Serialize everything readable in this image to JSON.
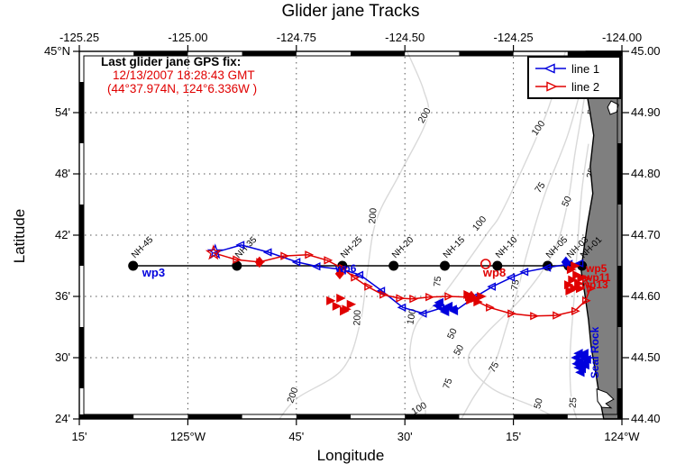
{
  "chart_data": {
    "type": "line",
    "title": "Glider jane Tracks",
    "xlabel": "Longitude",
    "ylabel": "Latitude",
    "xlim": [
      -125.25,
      -124.0
    ],
    "ylim": [
      44.4,
      45.0
    ],
    "x_tick_lons": [
      -125.25,
      -125.0,
      -124.75,
      -124.5,
      -124.25,
      -124.0
    ],
    "y_tick_lats": [
      45.0,
      44.9,
      44.8,
      44.7,
      44.6,
      44.5,
      44.4
    ],
    "axis_top_labels": [
      "-125.25",
      "-125.00",
      "-124.75",
      "-124.50",
      "-124.25",
      "-124.00"
    ],
    "axis_bottom_labels": [
      "15'",
      "125°W",
      "45'",
      "30'",
      "15'",
      "124°W"
    ],
    "axis_left_labels": [
      "45°N",
      "54'",
      "48'",
      "42'",
      "36'",
      "30'",
      "24'"
    ],
    "axis_right_labels": [
      "45.00",
      "44.90",
      "44.80",
      "44.70",
      "44.60",
      "44.50",
      "44.40"
    ],
    "grid": {
      "style": "dotted",
      "lons": [
        -125.0,
        -124.75,
        -124.5,
        -124.25
      ],
      "lats": [
        44.9,
        44.8,
        44.7,
        44.6,
        44.5
      ]
    },
    "colors": {
      "line1": "#0000dd",
      "line2": "#e00000",
      "land": "#7f7f7f",
      "contour": "#d9d9d9",
      "frame": "#000000"
    },
    "annotations": {
      "header": "Last glider jane GPS fix:",
      "datetime": "12/13/2007 18:28:43 GMT",
      "position": "(44°37.974N, 124°6.336W )"
    },
    "legend": {
      "position": "top-right",
      "items": [
        {
          "label": "line 1",
          "color": "#0000dd",
          "marker": "left-triangle"
        },
        {
          "label": "line 2",
          "color": "#e00000",
          "marker": "right-triangle"
        }
      ]
    },
    "nh_line": {
      "lat": 44.65,
      "lon_from": -125.126,
      "lon_to": -124.083
    },
    "nh_stations": [
      {
        "name": "NH-45",
        "lon": -125.126
      },
      {
        "name": "NH-35",
        "lon": -124.887
      },
      {
        "name": "NH-25",
        "lon": -124.644
      },
      {
        "name": "NH-20",
        "lon": -124.526
      },
      {
        "name": "NH-15",
        "lon": -124.408
      },
      {
        "name": "NH-10",
        "lon": -124.287
      },
      {
        "name": "NH-05",
        "lon": -124.171
      },
      {
        "name": "NH-03",
        "lon": -124.123
      },
      {
        "name": "NH-01",
        "lon": -124.092
      }
    ],
    "series": [
      {
        "name": "line 1",
        "color": "#0000dd",
        "marker": "left-triangle",
        "points": [
          [
            -124.941,
            44.671
          ],
          [
            -124.877,
            44.684
          ],
          [
            -124.814,
            44.672
          ],
          [
            -124.748,
            44.656
          ],
          [
            -124.702,
            44.649
          ],
          [
            -124.644,
            44.644
          ],
          [
            -124.603,
            44.635
          ],
          [
            -124.553,
            44.609
          ],
          [
            -124.505,
            44.582
          ],
          [
            -124.457,
            44.572
          ],
          [
            -124.416,
            44.581
          ],
          [
            -124.385,
            44.576
          ],
          [
            -124.339,
            44.599
          ],
          [
            -124.298,
            44.616
          ],
          [
            -124.254,
            44.631
          ],
          [
            -124.223,
            44.64
          ],
          [
            -124.171,
            44.647
          ],
          [
            -124.121,
            44.653
          ],
          [
            -124.096,
            44.654
          ]
        ]
      },
      {
        "name": "line 2",
        "color": "#e00000",
        "marker": "right-triangle",
        "points": [
          [
            -124.941,
            44.671
          ],
          [
            -124.889,
            44.66
          ],
          [
            -124.835,
            44.656
          ],
          [
            -124.779,
            44.666
          ],
          [
            -124.723,
            44.668
          ],
          [
            -124.679,
            44.659
          ],
          [
            -124.644,
            44.646
          ],
          [
            -124.617,
            44.631
          ],
          [
            -124.586,
            44.616
          ],
          [
            -124.551,
            44.603
          ],
          [
            -124.513,
            44.597
          ],
          [
            -124.482,
            44.596
          ],
          [
            -124.445,
            44.599
          ],
          [
            -124.401,
            44.6
          ],
          [
            -124.354,
            44.599
          ],
          [
            -124.306,
            44.582
          ],
          [
            -124.256,
            44.572
          ],
          [
            -124.204,
            44.568
          ],
          [
            -124.152,
            44.569
          ],
          [
            -124.109,
            44.576
          ],
          [
            -124.084,
            44.593
          ],
          [
            -124.073,
            44.613
          ],
          [
            -124.084,
            44.629
          ]
        ]
      }
    ],
    "start_marker": {
      "shape": "star",
      "lon": -124.941,
      "lat": 44.671
    },
    "wp8_circle": {
      "lon": -124.314,
      "lat": 44.653
    },
    "diamond_markers": [
      {
        "color": "#e00000",
        "lon": -124.835,
        "lat": 44.656
      },
      {
        "color": "#e00000",
        "lon": -124.65,
        "lat": 44.637
      },
      {
        "color": "#e00000",
        "lon": -124.347,
        "lat": 44.6
      },
      {
        "color": "#0000dd",
        "lon": -124.129,
        "lat": 44.656
      }
    ],
    "marker_clusters": [
      {
        "color": "#e00000",
        "dir": "right",
        "points": [
          [
            -124.673,
            44.593
          ],
          [
            -124.659,
            44.584
          ],
          [
            -124.642,
            44.576
          ],
          [
            -124.626,
            44.587
          ],
          [
            -124.65,
            44.597
          ],
          [
            -124.637,
            44.579
          ]
        ]
      },
      {
        "color": "#e00000",
        "dir": "right",
        "points": [
          [
            -124.357,
            44.603
          ],
          [
            -124.34,
            44.597
          ],
          [
            -124.326,
            44.6
          ],
          [
            -124.351,
            44.594
          ],
          [
            -124.334,
            44.591
          ]
        ]
      },
      {
        "color": "#e00000",
        "dir": "right",
        "points": [
          [
            -124.119,
            44.644
          ],
          [
            -124.106,
            44.635
          ],
          [
            -124.116,
            44.627
          ],
          [
            -124.102,
            44.621
          ],
          [
            -124.112,
            44.613
          ],
          [
            -124.122,
            44.609
          ],
          [
            -124.095,
            44.63
          ],
          [
            -124.11,
            44.65
          ],
          [
            -124.125,
            44.619
          ],
          [
            -124.098,
            44.613
          ]
        ]
      },
      {
        "color": "#0000dd",
        "dir": "left",
        "points": [
          [
            -124.423,
            44.585
          ],
          [
            -124.41,
            44.579
          ],
          [
            -124.398,
            44.584
          ],
          [
            -124.406,
            44.575
          ],
          [
            -124.388,
            44.579
          ],
          [
            -124.419,
            44.59
          ]
        ]
      },
      {
        "color": "#0000dd",
        "dir": "left",
        "points": [
          [
            -124.098,
            44.507
          ],
          [
            -124.087,
            44.501
          ],
          [
            -124.096,
            44.494
          ],
          [
            -124.083,
            44.488
          ],
          [
            -124.091,
            44.482
          ],
          [
            -124.102,
            44.49
          ],
          [
            -124.079,
            44.497
          ],
          [
            -124.094,
            44.476
          ],
          [
            -124.104,
            44.5
          ],
          [
            -124.085,
            44.507
          ],
          [
            -124.089,
            44.49
          ],
          [
            -124.098,
            44.484
          ]
        ]
      }
    ],
    "waypoint_labels": [
      {
        "name": "wp3-label",
        "text": "wp3",
        "color": "#0000dd",
        "lon": -125.105,
        "lat": 44.632,
        "size": 13
      },
      {
        "name": "wp6-label",
        "text": "wp6",
        "color": "#0000dd",
        "lon": -124.66,
        "lat": 44.64,
        "size": 12
      },
      {
        "name": "wp8-label",
        "text": "wp8",
        "color": "#e00000",
        "lon": -124.32,
        "lat": 44.632,
        "size": 13
      },
      {
        "name": "wp5-label",
        "text": "wp5",
        "color": "#e00000",
        "lon": -124.083,
        "lat": 44.64,
        "size": 12
      },
      {
        "name": "wp11-label",
        "text": "wp11",
        "color": "#e00000",
        "lon": -124.087,
        "lat": 44.625,
        "size": 12
      },
      {
        "name": "wp13-label",
        "text": "wp13",
        "color": "#e00000",
        "lon": -124.094,
        "lat": 44.613,
        "size": 12
      },
      {
        "name": "seal-rock-label",
        "text": "Seal Rock",
        "color": "#0000dd",
        "lon": -124.054,
        "lat": 44.466,
        "size": 12,
        "rotate": -90
      }
    ],
    "contour_labels": [
      {
        "text": "200",
        "lon": -124.449,
        "lat": 44.893,
        "rot": -60
      },
      {
        "text": "100",
        "lon": -124.187,
        "lat": 44.872,
        "rot": -55
      },
      {
        "text": "50",
        "lon": -124.063,
        "lat": 44.904,
        "rot": -80
      },
      {
        "text": "75",
        "lon": -124.183,
        "lat": 44.775,
        "rot": -55
      },
      {
        "text": "25",
        "lon": -124.065,
        "lat": 44.8,
        "rot": -75
      },
      {
        "text": "50",
        "lon": -124.121,
        "lat": 44.753,
        "rot": -65
      },
      {
        "text": "200",
        "lon": -124.567,
        "lat": 44.731,
        "rot": -85
      },
      {
        "text": "100",
        "lon": -124.323,
        "lat": 44.716,
        "rot": -50
      },
      {
        "text": "75",
        "lon": -124.418,
        "lat": 44.624,
        "rot": -85
      },
      {
        "text": "75",
        "lon": -124.239,
        "lat": 44.618,
        "rot": -80
      },
      {
        "text": "200",
        "lon": -124.603,
        "lat": 44.565,
        "rot": -88
      },
      {
        "text": "100",
        "lon": -124.478,
        "lat": 44.566,
        "rot": -80
      },
      {
        "text": "50",
        "lon": -124.385,
        "lat": 44.537,
        "rot": -65
      },
      {
        "text": "50",
        "lon": -124.37,
        "lat": 44.51,
        "rot": -60
      },
      {
        "text": "75",
        "lon": -124.395,
        "lat": 44.456,
        "rot": -70
      },
      {
        "text": "75",
        "lon": -124.289,
        "lat": 44.482,
        "rot": -60
      },
      {
        "text": "200",
        "lon": -124.752,
        "lat": 44.437,
        "rot": -70
      },
      {
        "text": "100",
        "lon": -124.464,
        "lat": 44.413,
        "rot": -30
      },
      {
        "text": "50",
        "lon": -124.186,
        "lat": 44.424,
        "rot": -75
      },
      {
        "text": "25",
        "lon": -124.106,
        "lat": 44.426,
        "rot": -85
      }
    ],
    "contour_lines": [
      {
        "depth_m": 200,
        "points": [
          [
            -124.495,
            45.0
          ],
          [
            -124.457,
            44.937
          ],
          [
            -124.449,
            44.89
          ],
          [
            -124.509,
            44.804
          ],
          [
            -124.565,
            44.726
          ],
          [
            -124.586,
            44.643
          ],
          [
            -124.603,
            44.557
          ],
          [
            -124.644,
            44.481
          ],
          [
            -124.748,
            44.434
          ],
          [
            -124.789,
            44.4
          ]
        ]
      },
      {
        "depth_m": 100,
        "points": [
          [
            -124.13,
            45.0
          ],
          [
            -124.177,
            44.893
          ],
          [
            -124.271,
            44.746
          ],
          [
            -124.312,
            44.701
          ],
          [
            -124.416,
            44.599
          ],
          [
            -124.474,
            44.554
          ],
          [
            -124.489,
            44.496
          ],
          [
            -124.474,
            44.451
          ],
          [
            -124.453,
            44.415
          ],
          [
            -124.457,
            44.4
          ]
        ]
      },
      {
        "depth_m": 75,
        "points": [
          [
            -124.084,
            44.966
          ],
          [
            -124.125,
            44.863
          ],
          [
            -124.177,
            44.768
          ],
          [
            -124.218,
            44.672
          ],
          [
            -124.239,
            44.613
          ],
          [
            -124.266,
            44.551
          ],
          [
            -124.295,
            44.488
          ],
          [
            -124.343,
            44.434
          ],
          [
            -124.37,
            44.4
          ]
        ]
      },
      {
        "depth_m": 50,
        "points": [
          [
            -124.073,
            45.0
          ],
          [
            -124.087,
            44.922
          ],
          [
            -124.108,
            44.834
          ],
          [
            -124.125,
            44.753
          ],
          [
            -124.158,
            44.672
          ],
          [
            -124.229,
            44.599
          ],
          [
            -124.312,
            44.54
          ],
          [
            -124.354,
            44.496
          ],
          [
            -124.302,
            44.451
          ],
          [
            -124.209,
            44.422
          ],
          [
            -124.157,
            44.404
          ],
          [
            -124.147,
            44.4
          ]
        ]
      },
      {
        "depth_m": 25,
        "points": [
          [
            -124.077,
            44.849
          ],
          [
            -124.092,
            44.775
          ],
          [
            -124.102,
            44.687
          ],
          [
            -124.11,
            44.599
          ],
          [
            -124.119,
            44.51
          ],
          [
            -124.117,
            44.437
          ],
          [
            -124.104,
            44.4
          ]
        ]
      }
    ],
    "coastline_polygon": [
      [
        -124.082,
        45.0
      ],
      [
        -124.073,
        44.974
      ],
      [
        -124.084,
        44.944
      ],
      [
        -124.075,
        44.907
      ],
      [
        -124.065,
        44.863
      ],
      [
        -124.073,
        44.812
      ],
      [
        -124.067,
        44.768
      ],
      [
        -124.08,
        44.716
      ],
      [
        -124.09,
        44.665
      ],
      [
        -124.094,
        44.643
      ],
      [
        -124.086,
        44.606
      ],
      [
        -124.077,
        44.562
      ],
      [
        -124.071,
        44.518
      ],
      [
        -124.06,
        44.474
      ],
      [
        -124.052,
        44.437
      ],
      [
        -124.042,
        44.4
      ],
      [
        -124.0,
        44.4
      ],
      [
        -124.0,
        45.0
      ]
    ],
    "coast_patches": [
      [
        [
          -124.025,
          44.919
        ],
        [
          -124.008,
          44.913
        ],
        [
          -124.012,
          44.901
        ],
        [
          -124.027,
          44.897
        ],
        [
          -124.033,
          44.909
        ]
      ],
      [
        [
          -124.058,
          44.449
        ],
        [
          -124.035,
          44.443
        ],
        [
          -124.019,
          44.432
        ],
        [
          -124.037,
          44.425
        ],
        [
          -124.025,
          44.418
        ],
        [
          -124.046,
          44.419
        ],
        [
          -124.056,
          44.429
        ]
      ]
    ]
  }
}
